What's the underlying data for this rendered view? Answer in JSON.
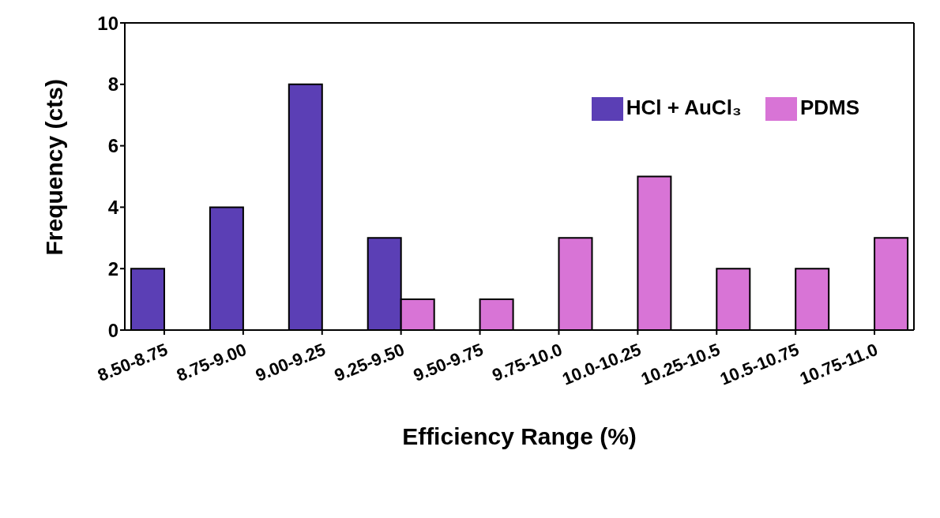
{
  "chart_data": {
    "type": "bar",
    "xlabel": "Efficiency Range (%)",
    "ylabel": "Frequency (cts)",
    "categories": [
      "8.50-8.75",
      "8.75-9.00",
      "9.00-9.25",
      "9.25-9.50",
      "9.50-9.75",
      "9.75-10.0",
      "10.0-10.25",
      "10.25-10.5",
      "10.5-10.75",
      "10.75-11.0"
    ],
    "series": [
      {
        "name": "HCl + AuCl₃",
        "color": "#5b3fb5",
        "values": [
          2,
          4,
          8,
          3,
          null,
          null,
          null,
          null,
          null,
          null
        ]
      },
      {
        "name": "PDMS",
        "color": "#d874d6",
        "values": [
          null,
          null,
          null,
          1,
          1,
          3,
          5,
          2,
          2,
          3
        ]
      }
    ],
    "ylim": [
      0,
      10
    ],
    "yticks": [
      0,
      2,
      4,
      6,
      8,
      10
    ],
    "grid": false,
    "legend": "top right"
  }
}
